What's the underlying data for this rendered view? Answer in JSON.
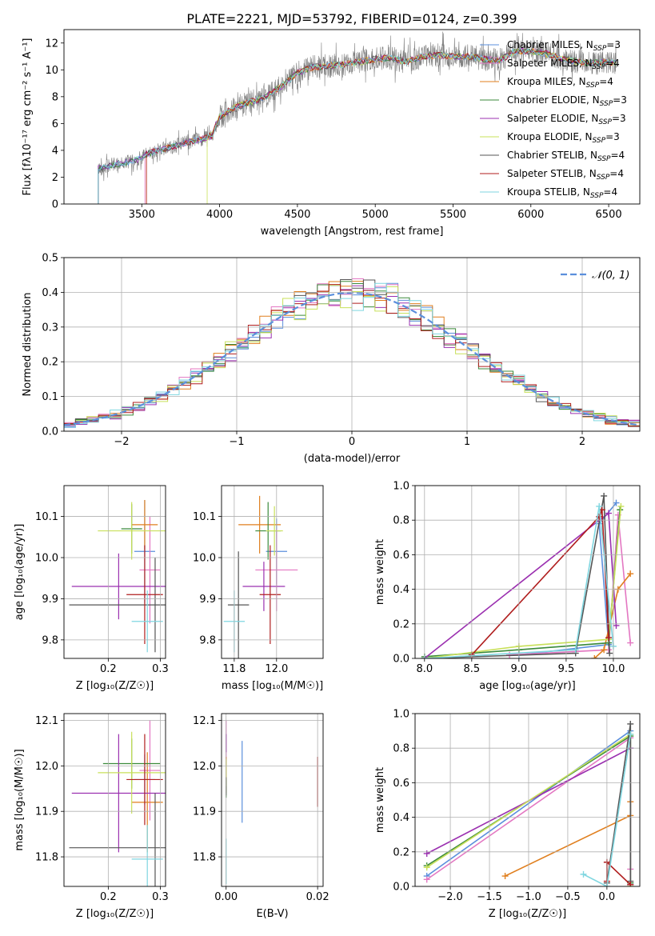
{
  "figure_title": "PLATE=2221, MJD=53792, FIBERID=0124, z=0.399",
  "models": [
    {
      "name": "Chabrier MILES",
      "nssp": "3",
      "color": "#5b8fdc"
    },
    {
      "name": "Salpeter MILES",
      "nssp": "4",
      "color": "#e377c2"
    },
    {
      "name": "Kroupa MILES",
      "nssp": "4",
      "color": "#e07f1e"
    },
    {
      "name": "Chabrier ELODIE",
      "nssp": "3",
      "color": "#3b8a3b"
    },
    {
      "name": "Salpeter ELODIE",
      "nssp": "3",
      "color": "#9b30b0"
    },
    {
      "name": "Kroupa ELODIE",
      "nssp": "3",
      "color": "#c8e05a"
    },
    {
      "name": "Chabrier STELIB",
      "nssp": "4",
      "color": "#555555"
    },
    {
      "name": "Salpeter STELIB",
      "nssp": "4",
      "color": "#b01e1e"
    },
    {
      "name": "Kroupa STELIB",
      "nssp": "4",
      "color": "#7fd6e0"
    }
  ],
  "chart_data": [
    {
      "id": "spectrum",
      "type": "line",
      "xlabel": "wavelength [Angstrom, rest frame]",
      "ylabel": "Flux [fλ10⁻¹⁷ erg cm⁻² s⁻¹ A⁻¹]",
      "xlim": [
        3000,
        6700
      ],
      "ylim": [
        0,
        13
      ],
      "xticks": [
        3500,
        4000,
        4500,
        5000,
        5500,
        6000,
        6500
      ],
      "yticks": [
        0,
        2,
        4,
        6,
        8,
        10,
        12
      ],
      "data_color": "#808080",
      "model_starts": [
        3220,
        3520,
        3530,
        3220,
        3220,
        3920,
        3220,
        3530,
        3220
      ],
      "continuum": [
        [
          3220,
          2.6
        ],
        [
          3300,
          2.9
        ],
        [
          3450,
          3.2
        ],
        [
          3550,
          3.8
        ],
        [
          3700,
          4.3
        ],
        [
          3800,
          4.6
        ],
        [
          3900,
          4.9
        ],
        [
          3950,
          5.1
        ],
        [
          4000,
          6.5
        ],
        [
          4100,
          7.2
        ],
        [
          4200,
          7.6
        ],
        [
          4300,
          8.0
        ],
        [
          4400,
          8.8
        ],
        [
          4500,
          9.8
        ],
        [
          4600,
          10.2
        ],
        [
          4700,
          10.3
        ],
        [
          4800,
          10.4
        ],
        [
          4900,
          10.6
        ],
        [
          5000,
          10.8
        ],
        [
          5100,
          10.9
        ],
        [
          5200,
          10.6
        ],
        [
          5300,
          11.0
        ],
        [
          5400,
          11.1
        ],
        [
          5500,
          11.0
        ],
        [
          5600,
          11.0
        ],
        [
          5700,
          10.8
        ],
        [
          5800,
          10.7
        ],
        [
          5900,
          11.4
        ],
        [
          6000,
          11.4
        ],
        [
          6100,
          11.2
        ],
        [
          6200,
          10.8
        ],
        [
          6300,
          10.6
        ],
        [
          6400,
          10.5
        ],
        [
          6500,
          10.6
        ],
        [
          6550,
          10.5
        ]
      ],
      "legend_position": "upper right"
    },
    {
      "id": "residuals",
      "type": "histogram",
      "xlabel": "(data-model)/error",
      "ylabel": "Normed distribution",
      "xlim": [
        -2.5,
        2.5
      ],
      "ylim": [
        0,
        0.5
      ],
      "xticks": [
        -2,
        -1,
        0,
        1,
        2
      ],
      "yticks": [
        0,
        0.1,
        0.2,
        0.3,
        0.4,
        0.5
      ],
      "bin_width": 0.1,
      "reference_label": "𝒩(0, 1)",
      "reference_color": "#5b8fdc",
      "grid": true,
      "legend_position": "upper right"
    },
    {
      "id": "age_vs_Z",
      "type": "errorbar",
      "xlabel": "Z [log₁₀(Z/Z☉)]",
      "ylabel": "age  [log₁₀(age/yr)]",
      "xlim": [
        0.115,
        0.31
      ],
      "ylim": [
        9.755,
        10.175
      ],
      "xticks": [
        0.2,
        0.3
      ],
      "yticks": [
        9.8,
        9.9,
        10.0,
        10.1
      ],
      "points": [
        {
          "x": 0.27,
          "y": 10.015,
          "xerr": 0.02,
          "yerr": 0.125
        },
        {
          "x": 0.28,
          "y": 9.97,
          "xerr": 0.02,
          "yerr": 0.13
        },
        {
          "x": 0.27,
          "y": 10.08,
          "xerr": 0.025,
          "yerr": 0.06
        },
        {
          "x": 0.245,
          "y": 10.07,
          "xerr": 0.02,
          "yerr": 0.06
        },
        {
          "x": 0.22,
          "y": 9.93,
          "xerr": 0.09,
          "yerr": 0.08
        },
        {
          "x": 0.245,
          "y": 10.065,
          "xerr": 0.065,
          "yerr": 0.07
        },
        {
          "x": 0.29,
          "y": 9.885,
          "xerr": 0.165,
          "yerr": 0.115
        },
        {
          "x": 0.27,
          "y": 9.91,
          "xerr": 0.035,
          "yerr": 0.12
        },
        {
          "x": 0.275,
          "y": 9.845,
          "xerr": 0.03,
          "yerr": 0.075
        }
      ]
    },
    {
      "id": "age_vs_mass",
      "type": "errorbar",
      "xlabel": "mass [log₁₀(M/M☉)]",
      "ylabel": "",
      "xlim": [
        11.74,
        12.22
      ],
      "ylim": [
        9.755,
        10.175
      ],
      "xticks": [
        11.8,
        12.0
      ],
      "yticks": [
        9.8,
        9.9,
        10.0,
        10.1
      ],
      "points": [
        {
          "x": 12.0,
          "y": 10.015,
          "xerr": 0.05,
          "yerr": 0.08
        },
        {
          "x": 12.0,
          "y": 9.97,
          "xerr": 0.1,
          "yerr": 0.1
        },
        {
          "x": 11.92,
          "y": 10.08,
          "xerr": 0.1,
          "yerr": 0.07
        },
        {
          "x": 11.96,
          "y": 10.065,
          "xerr": 0.06,
          "yerr": 0.07
        },
        {
          "x": 11.94,
          "y": 9.93,
          "xerr": 0.1,
          "yerr": 0.06
        },
        {
          "x": 11.99,
          "y": 10.065,
          "xerr": 0.04,
          "yerr": 0.06
        },
        {
          "x": 11.82,
          "y": 9.885,
          "xerr": 0.05,
          "yerr": 0.13
        },
        {
          "x": 11.97,
          "y": 9.91,
          "xerr": 0.05,
          "yerr": 0.12
        },
        {
          "x": 11.8,
          "y": 9.845,
          "xerr": 0.05,
          "yerr": 0.075
        }
      ]
    },
    {
      "id": "mw_vs_age",
      "type": "line",
      "xlabel": "age  [log₁₀(age/yr)]",
      "ylabel": "mass weight",
      "xlim": [
        7.9,
        10.28
      ],
      "ylim": [
        0,
        1.0
      ],
      "xticks": [
        8.0,
        8.5,
        9.0,
        9.5,
        10.0
      ],
      "yticks": [
        0.0,
        0.2,
        0.4,
        0.6,
        0.8,
        1.0
      ],
      "grid": true,
      "series": [
        {
          "x": [
            9.0,
            9.95,
            9.85,
            10.03
          ],
          "y": [
            0.02,
            0.08,
            0.78,
            0.9
          ]
        },
        {
          "x": [
            8.9,
            9.95,
            10.05,
            10.18
          ],
          "y": [
            0.02,
            0.05,
            0.83,
            0.09
          ]
        },
        {
          "x": [
            9.8,
            9.9,
            10.05,
            10.18
          ],
          "y": [
            0.0,
            0.05,
            0.4,
            0.49
          ]
        },
        {
          "x": [
            8.0,
            9.0,
            9.95,
            10.07
          ],
          "y": [
            0.01,
            0.05,
            0.09,
            0.86
          ]
        },
        {
          "x": [
            8.0,
            9.85,
            9.95,
            10.03
          ],
          "y": [
            0.0,
            0.8,
            0.84,
            0.19
          ]
        },
        {
          "x": [
            8.0,
            9.0,
            9.95,
            10.08
          ],
          "y": [
            0.0,
            0.07,
            0.11,
            0.88
          ]
        },
        {
          "x": [
            8.0,
            9.6,
            9.9,
            9.96
          ],
          "y": [
            0.0,
            0.03,
            0.94,
            0.03
          ]
        },
        {
          "x": [
            8.5,
            9.85,
            9.88,
            9.95
          ],
          "y": [
            0.02,
            0.82,
            0.86,
            0.12
          ]
        },
        {
          "x": [
            8.0,
            9.6,
            9.85,
            10.0
          ],
          "y": [
            0.0,
            0.05,
            0.88,
            0.07
          ]
        }
      ]
    },
    {
      "id": "mass_vs_Z",
      "type": "errorbar",
      "xlabel": "Z [log₁₀(Z/Z☉)]",
      "ylabel": "mass [log₁₀(M/M☉)]",
      "xlim": [
        0.115,
        0.31
      ],
      "ylim": [
        11.735,
        12.115
      ],
      "xticks": [
        0.2,
        0.3
      ],
      "yticks": [
        11.8,
        11.9,
        12.0,
        12.1
      ],
      "points": [
        {
          "x": 0.27,
          "y": 11.97,
          "xerr": 0.02,
          "yerr": 0.055
        },
        {
          "x": 0.28,
          "y": 11.99,
          "xerr": 0.02,
          "yerr": 0.11
        },
        {
          "x": 0.275,
          "y": 11.92,
          "xerr": 0.03,
          "yerr": 0.11
        },
        {
          "x": 0.245,
          "y": 12.005,
          "xerr": 0.055,
          "yerr": 0.055
        },
        {
          "x": 0.22,
          "y": 11.94,
          "xerr": 0.09,
          "yerr": 0.13
        },
        {
          "x": 0.245,
          "y": 11.985,
          "xerr": 0.065,
          "yerr": 0.09
        },
        {
          "x": 0.29,
          "y": 11.82,
          "xerr": 0.165,
          "yerr": 0.12
        },
        {
          "x": 0.27,
          "y": 11.97,
          "xerr": 0.035,
          "yerr": 0.1
        },
        {
          "x": 0.275,
          "y": 11.795,
          "xerr": 0.03,
          "yerr": 0.075
        }
      ]
    },
    {
      "id": "mass_vs_ebv",
      "type": "errorbar",
      "xlabel": "E(B-V)",
      "ylabel": "",
      "xlim": [
        -0.001,
        0.0212
      ],
      "ylim": [
        11.735,
        12.115
      ],
      "xticks": [
        0.0,
        0.02
      ],
      "yticks": [
        11.8,
        11.9,
        12.0,
        12.1
      ],
      "points": [
        {
          "x": 0.0035,
          "y": 11.965,
          "xerr": 0.0,
          "yerr": 0.09
        },
        {
          "x": 0.0,
          "y": 12.05,
          "xerr": 0.0,
          "yerr": 0.05
        },
        {
          "x": 0.0,
          "y": 11.98,
          "xerr": 0.0,
          "yerr": 0.04
        },
        {
          "x": 0.0,
          "y": 11.95,
          "xerr": 0.0,
          "yerr": 0.02
        },
        {
          "x": 0.0,
          "y": 12.05,
          "xerr": 0.0,
          "yerr": 0.02
        },
        {
          "x": 0.0,
          "y": 11.985,
          "xerr": 0.0,
          "yerr": 0.03
        },
        {
          "x": 0.0,
          "y": 11.955,
          "xerr": 0.0,
          "yerr": 0.02
        },
        {
          "x": 0.02,
          "y": 11.965,
          "xerr": 0.0,
          "yerr": 0.055
        },
        {
          "x": 0.0,
          "y": 11.79,
          "xerr": 0.0,
          "yerr": 0.05
        }
      ]
    },
    {
      "id": "mw_vs_Z",
      "type": "line",
      "xlabel": "Z [log₁₀(Z/Z☉)]",
      "ylabel": "mass weight",
      "xlim": [
        -2.45,
        0.42
      ],
      "ylim": [
        0,
        1.0
      ],
      "xticks": [
        -2.0,
        -1.5,
        -1.0,
        -0.5,
        0.0
      ],
      "yticks": [
        0.0,
        0.2,
        0.4,
        0.6,
        0.8,
        1.0
      ],
      "grid": true,
      "series": [
        {
          "x": [
            -2.3,
            0.3,
            0.3
          ],
          "y": [
            0.06,
            0.9,
            0.02
          ]
        },
        {
          "x": [
            -2.3,
            0.3,
            0.3
          ],
          "y": [
            0.04,
            0.86,
            0.1
          ]
        },
        {
          "x": [
            -1.3,
            0.3,
            0.3
          ],
          "y": [
            0.06,
            0.41,
            0.49
          ]
        },
        {
          "x": [
            -2.3,
            0.3,
            0.3
          ],
          "y": [
            0.12,
            0.87,
            0.02
          ]
        },
        {
          "x": [
            -2.3,
            0.3,
            0.3
          ],
          "y": [
            0.19,
            0.8,
            0.01
          ]
        },
        {
          "x": [
            -2.3,
            0.3,
            0.3
          ],
          "y": [
            0.11,
            0.88,
            0.0
          ]
        },
        {
          "x": [
            0.0,
            0.3,
            0.3
          ],
          "y": [
            0.02,
            0.94,
            0.03
          ]
        },
        {
          "x": [
            0.0,
            0.0,
            0.3
          ],
          "y": [
            0.03,
            0.14,
            0.01
          ]
        },
        {
          "x": [
            -0.3,
            0.0,
            0.3
          ],
          "y": [
            0.07,
            0.0,
            0.88
          ]
        }
      ]
    }
  ]
}
